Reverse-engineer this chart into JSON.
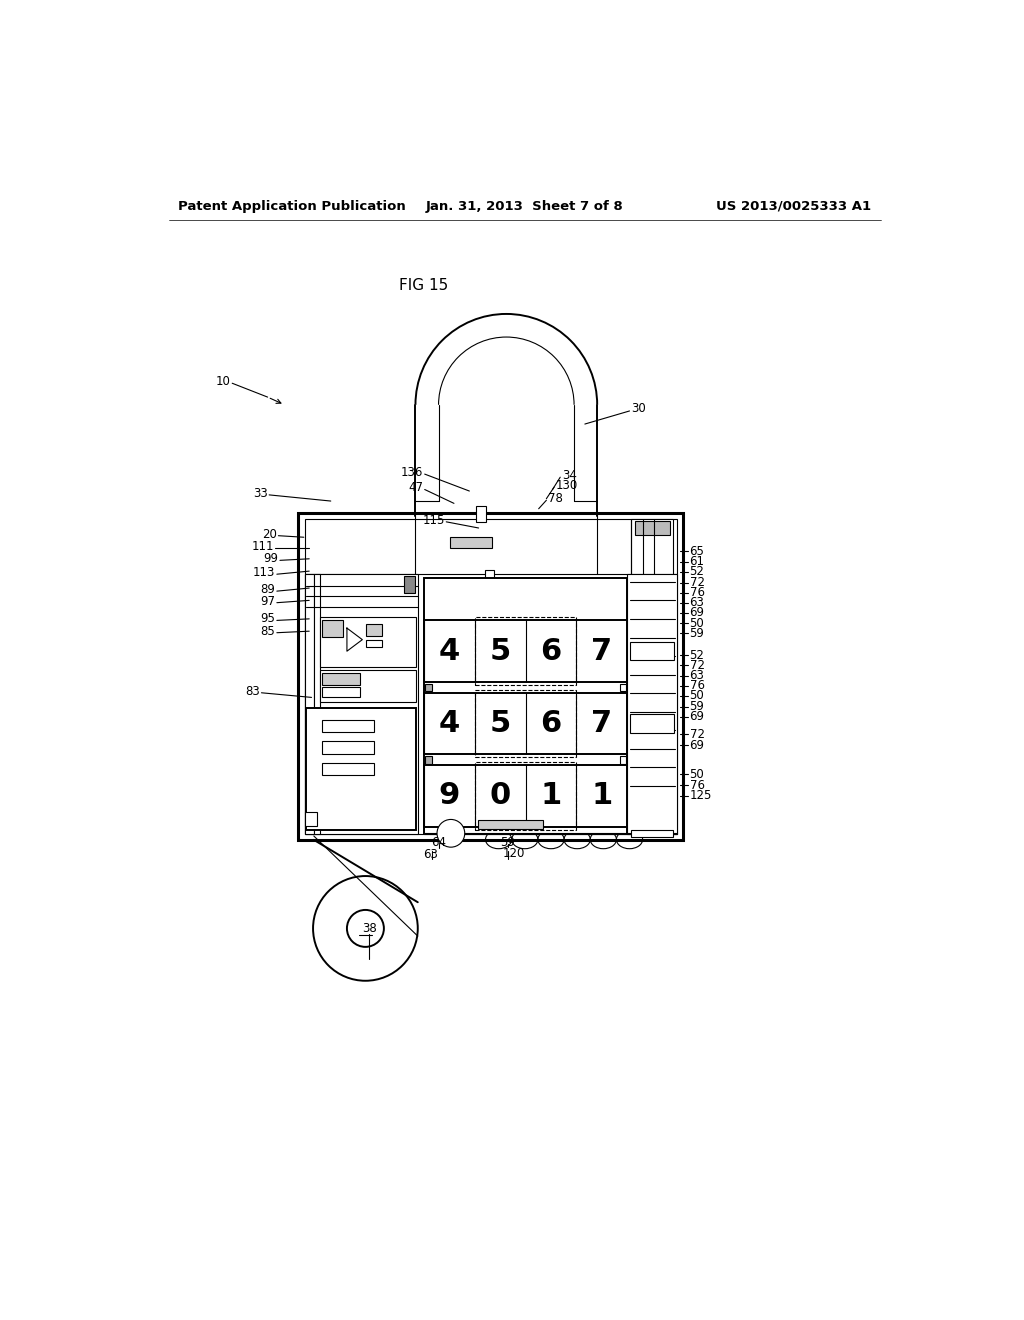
{
  "header_left": "Patent Application Publication",
  "header_center": "Jan. 31, 2013  Sheet 7 of 8",
  "header_right": "US 2013/0025333 A1",
  "title": "FIG 15",
  "bg_color": "#ffffff",
  "line_color": "#000000",
  "row1_digits": [
    "4",
    "5",
    "6",
    "7"
  ],
  "row2_digits": [
    "4",
    "5",
    "6",
    "7"
  ],
  "row3_digits": [
    "9",
    "0",
    "1",
    "1"
  ],
  "right_labels_row1": [
    "65",
    "61",
    "52",
    "72",
    "76",
    "63",
    "69",
    "50",
    "59"
  ],
  "right_labels_row2": [
    "52",
    "72",
    "63",
    "76",
    "50",
    "59",
    "69"
  ],
  "right_labels_row3": [
    "72",
    "69",
    "50",
    "76",
    "125"
  ],
  "left_labels": [
    "20",
    "111",
    "99",
    "113",
    "89",
    "97",
    "95",
    "85",
    "83"
  ],
  "bottom_labels": [
    "64",
    "63",
    "120",
    "59",
    "38"
  ]
}
